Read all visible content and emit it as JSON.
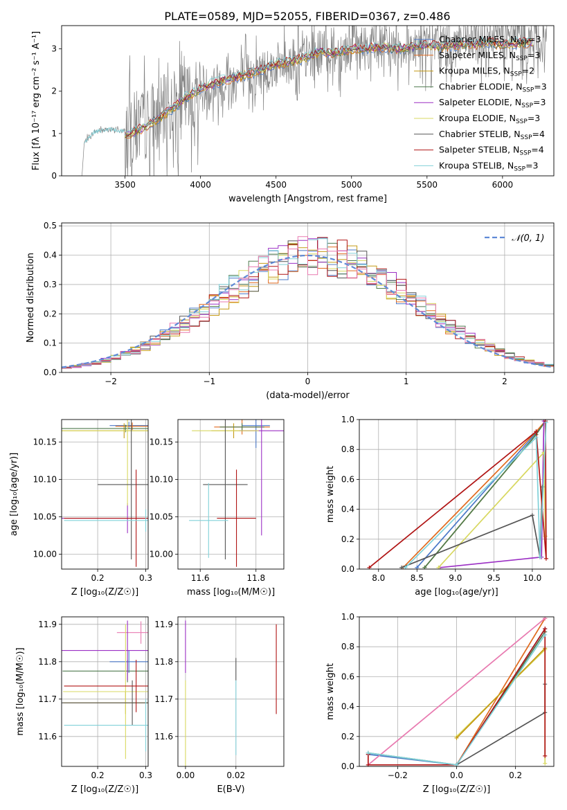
{
  "figure_title": "PLATE=0589, MJD=52055, FIBERID=0367, z=0.486",
  "legend_models": [
    "Chabrier MILES",
    "Salpeter MILES",
    "Kroupa MILES",
    "Chabrier ELODIE",
    "Salpeter ELODIE",
    "Kroupa ELODIE",
    "Chabrier STELIB",
    "Salpeter STELIB",
    "Kroupa STELIB"
  ],
  "legend_nssp": [
    3,
    3,
    2,
    3,
    3,
    3,
    4,
    4,
    3
  ],
  "legend_nssp_prefix": "N",
  "legend_nssp_sub": "SSP",
  "model_colors": [
    "#4a78c8",
    "#e06a1e",
    "#c49a14",
    "#4e7a4e",
    "#9b2fc4",
    "#d8d860",
    "#555555",
    "#b01414",
    "#80d0d8"
  ],
  "chart_data": [
    {
      "type": "line",
      "xlabel": "wavelength [Angstrom, rest frame]",
      "ylabel": "Flux [fλ 10⁻¹⁷ erg cm⁻² s⁻¹ A⁻¹]",
      "xlim": [
        3080,
        6340
      ],
      "ylim": [
        0,
        3.55
      ],
      "x_ticks": [
        3500,
        4000,
        4500,
        5000,
        5500,
        6000
      ],
      "y_ticks": [
        0,
        1,
        2,
        3
      ],
      "data_color": "#808080",
      "observed_flux": {
        "x": [
          3190,
          3215,
          3230,
          3300,
          3400,
          3500,
          3600,
          3700,
          3800,
          3900,
          4000,
          4100,
          4200,
          4300,
          4400,
          4500,
          4600,
          4700,
          4800,
          4900,
          5000,
          5100,
          5200,
          5300,
          5400,
          5500,
          5600,
          5700,
          5800,
          5900,
          6000,
          6100,
          6200
        ],
        "y": [
          0,
          0,
          0.8,
          1.05,
          1.1,
          1.05,
          1.15,
          1.35,
          1.6,
          1.8,
          2.0,
          2.15,
          2.25,
          2.35,
          2.45,
          2.6,
          2.7,
          2.8,
          2.95,
          2.95,
          3.0,
          3.05,
          3.05,
          3.05,
          3.1,
          3.1,
          3.1,
          3.15,
          3.15,
          3.15,
          3.2,
          3.2,
          3.2
        ]
      },
      "model_flux": {
        "x": [
          3500,
          3600,
          3700,
          3800,
          3900,
          4000,
          4100,
          4200,
          4300,
          4400,
          4500,
          4600,
          4700,
          4800,
          4900,
          5000,
          5100,
          5200,
          5300,
          5400,
          5500,
          5600,
          5700,
          5800,
          5900,
          6000,
          6100,
          6200
        ],
        "y": [
          0.95,
          1.1,
          1.3,
          1.55,
          1.85,
          2.05,
          2.2,
          2.3,
          2.4,
          2.5,
          2.65,
          2.7,
          2.8,
          2.95,
          2.9,
          3.0,
          3.0,
          3.05,
          3.0,
          3.05,
          3.1,
          3.05,
          3.1,
          3.1,
          3.15,
          3.1,
          3.15,
          3.15
        ]
      }
    },
    {
      "type": "line",
      "xlabel": "(data-model)/error",
      "ylabel": "Normed distribution",
      "xlim": [
        -2.5,
        2.5
      ],
      "ylim": [
        0,
        0.51
      ],
      "x_ticks": [
        -2,
        -1,
        0,
        1,
        2
      ],
      "y_ticks": [
        0.0,
        0.1,
        0.2,
        0.3,
        0.4,
        0.5
      ],
      "grid": true,
      "legend": "top-right",
      "gauss_label": "𝒩(0, 1)",
      "gauss_color": "#5f8ad6",
      "histogram_bin_width": 0.1,
      "histogram_range": [
        -2.5,
        2.5
      ]
    },
    {
      "type": "scatter",
      "xlabel": "Z [log₁₀(Z/Z☉)]",
      "ylabel": "age [log₁₀(age/yr)]",
      "xlim": [
        0.125,
        0.305
      ],
      "ylim": [
        9.98,
        10.18
      ],
      "x_ticks": [
        0.2,
        0.3
      ],
      "y_ticks": [
        10.0,
        10.05,
        10.1,
        10.15
      ],
      "grid": true,
      "points": [
        {
          "x": 0.265,
          "y": 10.172,
          "xerr": 0.04,
          "yerr": 0.005,
          "c": 0
        },
        {
          "x": 0.272,
          "y": 10.171,
          "xerr": 0.035,
          "yerr": 0.005,
          "c": 1
        },
        {
          "x": 0.255,
          "y": 10.165,
          "xerr": 0.13,
          "yerr": 0.01,
          "c": 2
        },
        {
          "x": 0.258,
          "y": 10.168,
          "xerr": 0.135,
          "yerr": 0.005,
          "c": 3
        },
        {
          "x": 0.262,
          "y": 10.048,
          "xerr": 0.14,
          "yerr": 0.02,
          "c": 4
        },
        {
          "x": 0.262,
          "y": 10.165,
          "xerr": 0.15,
          "yerr": 0.1,
          "c": 5
        },
        {
          "x": 0.27,
          "y": 10.093,
          "xerr": 0.07,
          "yerr": 0.1,
          "c": 6
        },
        {
          "x": 0.28,
          "y": 10.048,
          "xerr": 0.15,
          "yerr": 0.065,
          "c": 7
        },
        {
          "x": 0.3,
          "y": 10.045,
          "xerr": 0.17,
          "yerr": 0.015,
          "c": 8
        }
      ]
    },
    {
      "type": "scatter",
      "xlabel": "mass [log₁₀(M/M☉)]",
      "ylabel": "",
      "xlim": [
        11.52,
        11.9
      ],
      "ylim": [
        9.98,
        10.18
      ],
      "x_ticks": [
        11.6,
        11.8
      ],
      "y_ticks": [
        10.0,
        10.05,
        10.1,
        10.15
      ],
      "grid": true,
      "points": [
        {
          "x": 11.8,
          "y": 10.172,
          "xerr": 0.05,
          "yerr": 0.03,
          "c": 0
        },
        {
          "x": 11.75,
          "y": 10.17,
          "xerr": 0.1,
          "yerr": 0.01,
          "c": 1
        },
        {
          "x": 11.72,
          "y": 10.165,
          "xerr": 0.08,
          "yerr": 0.01,
          "c": 2
        },
        {
          "x": 11.75,
          "y": 10.17,
          "xerr": 0.08,
          "yerr": 0.005,
          "c": 3
        },
        {
          "x": 11.82,
          "y": 10.165,
          "xerr": 0.08,
          "yerr": 0.14,
          "c": 4
        },
        {
          "x": 11.69,
          "y": 10.165,
          "xerr": 0.12,
          "yerr": 0.01,
          "c": 5
        },
        {
          "x": 11.69,
          "y": 10.093,
          "xerr": 0.08,
          "yerr": 0.1,
          "c": 6
        },
        {
          "x": 11.73,
          "y": 10.048,
          "xerr": 0.07,
          "yerr": 0.065,
          "c": 7
        },
        {
          "x": 11.63,
          "y": 10.045,
          "xerr": 0.07,
          "yerr": 0.05,
          "c": 8
        }
      ]
    },
    {
      "type": "line",
      "xlabel": "age  [log₁₀(age/yr)]",
      "ylabel": "mass weight",
      "xlim": [
        7.75,
        10.28
      ],
      "ylim": [
        0,
        1
      ],
      "x_ticks": [
        8.0,
        8.5,
        9.0,
        9.5,
        10.0
      ],
      "y_ticks": [
        0.0,
        0.2,
        0.4,
        0.6,
        0.8,
        1.0
      ],
      "grid": true,
      "series": [
        {
          "c": 0,
          "x": [
            8.5,
            10.03,
            10.17
          ],
          "y": [
            0.01,
            0.9,
            0.99
          ]
        },
        {
          "c": 1,
          "x": [
            8.32,
            10.05,
            10.17
          ],
          "y": [
            0.01,
            0.92,
            0.99
          ]
        },
        {
          "c": 2,
          "x": [
            8.6,
            10.05
          ],
          "y": [
            0.01,
            0.9
          ]
        },
        {
          "c": 3,
          "x": [
            8.6,
            10.05,
            10.17
          ],
          "y": [
            0.01,
            0.9,
            0.99
          ]
        },
        {
          "c": 4,
          "x": [
            8.8,
            10.12,
            10.15
          ],
          "y": [
            0.01,
            0.08,
            0.99
          ]
        },
        {
          "c": 5,
          "x": [
            8.78,
            10.15,
            10.17
          ],
          "y": [
            0.01,
            0.78,
            0.22
          ]
        },
        {
          "c": 6,
          "x": [
            8.3,
            10.0,
            10.1,
            10.13
          ],
          "y": [
            0.01,
            0.36,
            0.08,
            0.55
          ]
        },
        {
          "c": 7,
          "x": [
            7.88,
            10.05,
            10.18,
            10.17
          ],
          "y": [
            0.01,
            0.92,
            0.07,
            0.99
          ]
        },
        {
          "c": 8,
          "x": [
            8.35,
            10.05,
            10.1,
            10.18
          ],
          "y": [
            0.01,
            0.88,
            0.08,
            0.98
          ]
        }
      ]
    },
    {
      "type": "scatter",
      "xlabel": "Z [log₁₀(Z/Z☉)]",
      "ylabel": "mass [log₁₀(M/M☉)]",
      "xlim": [
        0.125,
        0.305
      ],
      "ylim": [
        11.52,
        11.92
      ],
      "x_ticks": [
        0.2,
        0.3
      ],
      "y_ticks": [
        11.6,
        11.7,
        11.8,
        11.9
      ],
      "grid": true,
      "points": [
        {
          "x": 0.265,
          "y": 11.8,
          "xerr": 0.04,
          "yerr": 0.03,
          "c": 0
        },
        {
          "x": 0.29,
          "y": 11.878,
          "xerr": 0.05,
          "yerr": 0.03,
          "c": 9
        },
        {
          "x": 0.258,
          "y": 11.69,
          "xerr": 0.13,
          "yerr": 0.03,
          "c": 2
        },
        {
          "x": 0.262,
          "y": 11.775,
          "xerr": 0.135,
          "yerr": 0.03,
          "c": 3
        },
        {
          "x": 0.262,
          "y": 11.83,
          "xerr": 0.14,
          "yerr": 0.08,
          "c": 4
        },
        {
          "x": 0.258,
          "y": 11.72,
          "xerr": 0.13,
          "yerr": 0.18,
          "c": 5
        },
        {
          "x": 0.272,
          "y": 11.69,
          "xerr": 0.15,
          "yerr": 0.06,
          "c": 6
        },
        {
          "x": 0.28,
          "y": 11.735,
          "xerr": 0.15,
          "yerr": 0.07,
          "c": 7
        },
        {
          "x": 0.3,
          "y": 11.63,
          "xerr": 0.17,
          "yerr": 0.07,
          "c": 8
        }
      ]
    },
    {
      "type": "scatter",
      "xlabel": "E(B-V)",
      "ylabel": "",
      "xlim": [
        -0.003,
        0.039
      ],
      "ylim": [
        11.52,
        11.92
      ],
      "x_ticks": [
        0.0,
        0.02
      ],
      "y_ticks": [
        11.6,
        11.7,
        11.8,
        11.9
      ],
      "grid": true,
      "points": [
        {
          "x": 0.0,
          "y": 11.84,
          "yerr": 0.07,
          "c": 4
        },
        {
          "x": 0.0,
          "y": 11.63,
          "yerr": 0.12,
          "c": 5
        },
        {
          "x": 0.02,
          "y": 11.78,
          "yerr": 0.03,
          "c": 6
        },
        {
          "x": 0.02,
          "y": 11.65,
          "yerr": 0.1,
          "c": 8
        },
        {
          "x": 0.036,
          "y": 11.78,
          "yerr": 0.12,
          "c": 7
        }
      ]
    },
    {
      "type": "line",
      "xlabel": "Z [log₁₀(Z/Z☉)]",
      "ylabel": "mass weight",
      "xlim": [
        -0.33,
        0.33
      ],
      "ylim": [
        0,
        1
      ],
      "x_ticks": [
        -0.2,
        0.0,
        0.2
      ],
      "y_ticks": [
        0.0,
        0.2,
        0.4,
        0.6,
        0.8,
        1.0
      ],
      "grid": true,
      "series": [
        {
          "c": 0,
          "x": [
            -0.3,
            0.0,
            0.3
          ],
          "y": [
            0.08,
            0.01,
            0.92
          ]
        },
        {
          "c": 1,
          "x": [
            0.0,
            0.3
          ],
          "y": [
            0.01,
            0.99
          ]
        },
        {
          "c": 9,
          "x": [
            -0.3,
            0.3
          ],
          "y": [
            0.01,
            0.99
          ]
        },
        {
          "c": 3,
          "x": [
            -0.3,
            0.0,
            0.3
          ],
          "y": [
            0.09,
            0.01,
            0.9
          ]
        },
        {
          "c": 5,
          "x": [
            0.0,
            0.3,
            0.3
          ],
          "y": [
            0.2,
            0.78,
            0.02
          ]
        },
        {
          "c": 2,
          "x": [
            0.0,
            0.3
          ],
          "y": [
            0.19,
            0.79
          ]
        },
        {
          "c": 6,
          "x": [
            0.0,
            0.3,
            0.3
          ],
          "y": [
            0.01,
            0.36,
            0.55
          ]
        },
        {
          "c": 7,
          "x": [
            -0.3,
            -0.3,
            0.0,
            0.3,
            0.3
          ],
          "y": [
            0.08,
            0.01,
            0.01,
            0.92,
            0.07
          ]
        },
        {
          "c": 8,
          "x": [
            -0.3,
            0.0,
            0.3
          ],
          "y": [
            0.09,
            0.01,
            0.88
          ]
        }
      ]
    }
  ]
}
